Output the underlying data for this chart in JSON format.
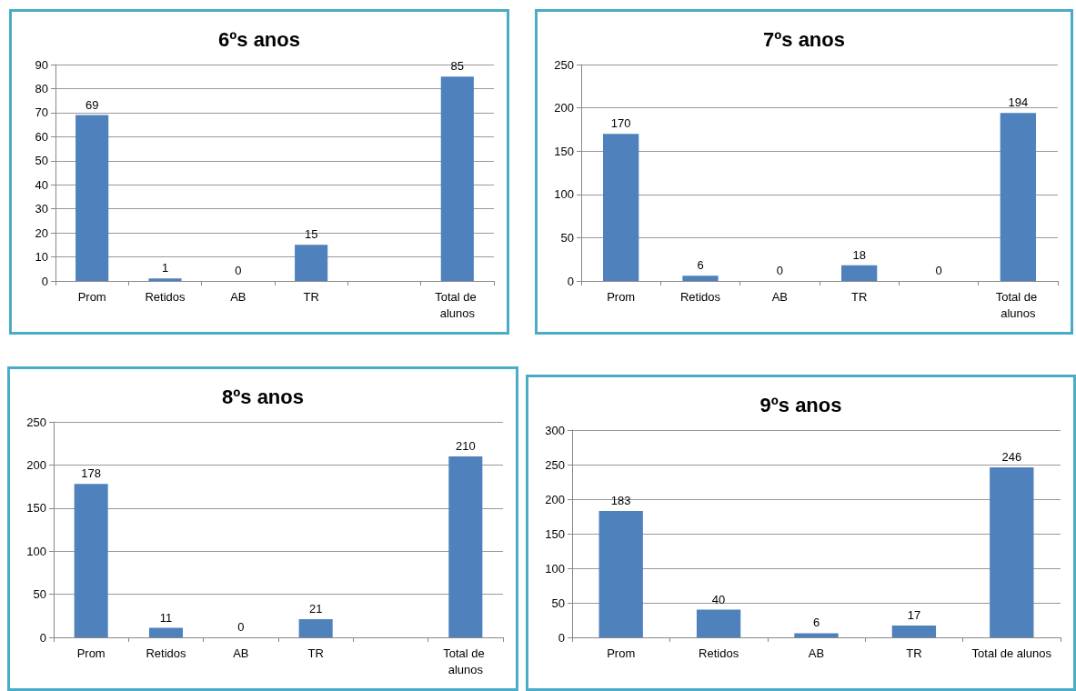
{
  "chart_data": [
    {
      "type": "bar",
      "title": "6ºs anos",
      "categories": [
        "Prom",
        "Retidos",
        "AB",
        "TR",
        null,
        "Total de alunos"
      ],
      "values": [
        69,
        1,
        0,
        15,
        null,
        85
      ],
      "color": "#4f81bd",
      "ylim": [
        0,
        90
      ],
      "yticks": [
        0,
        10,
        20,
        30,
        40,
        50,
        60,
        70,
        80,
        90
      ],
      "grid": "y",
      "data_labels": true
    },
    {
      "type": "bar",
      "title": "7ºs anos",
      "categories": [
        "Prom",
        "Retidos",
        "AB",
        "TR",
        null,
        "Total de alunos"
      ],
      "values": [
        170,
        6,
        0,
        18,
        0,
        194
      ],
      "color": "#4f81bd",
      "ylim": [
        0,
        250
      ],
      "yticks": [
        0,
        50,
        100,
        150,
        200,
        250
      ],
      "grid": "y",
      "data_labels": true
    },
    {
      "type": "bar",
      "title": "8ºs anos",
      "categories": [
        "Prom",
        "Retidos",
        "AB",
        "TR",
        null,
        "Total de alunos"
      ],
      "values": [
        178,
        11,
        0,
        21,
        null,
        210
      ],
      "color": "#4f81bd",
      "ylim": [
        0,
        250
      ],
      "yticks": [
        0,
        50,
        100,
        150,
        200,
        250
      ],
      "grid": "y",
      "data_labels": true
    },
    {
      "type": "bar",
      "title": "9ºs anos",
      "categories": [
        "Prom",
        "Retidos",
        "AB",
        "TR",
        "Total de alunos"
      ],
      "values": [
        183,
        40,
        6,
        17,
        246
      ],
      "color": "#4f81bd",
      "ylim": [
        0,
        300
      ],
      "yticks": [
        0,
        50,
        100,
        150,
        200,
        250,
        300
      ],
      "grid": "y",
      "data_labels": true
    }
  ]
}
